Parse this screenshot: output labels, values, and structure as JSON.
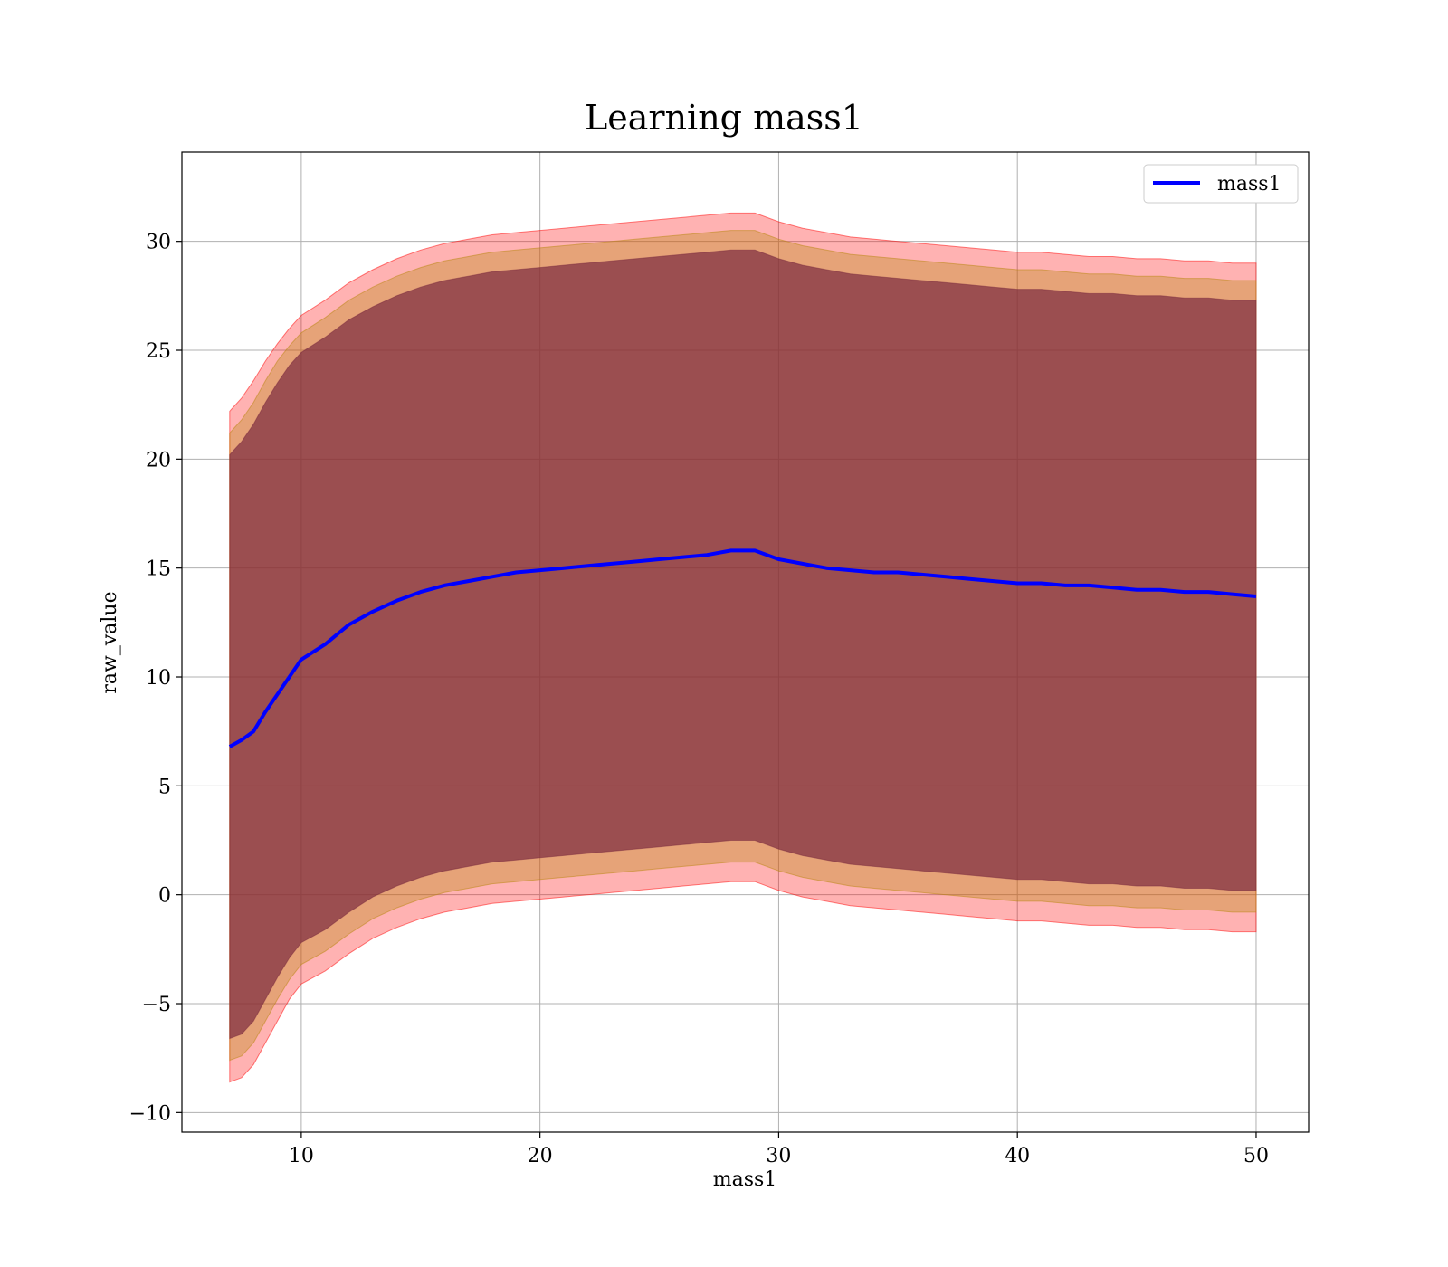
{
  "chart_data": {
    "type": "line",
    "title": "Learning mass1",
    "xlabel": "mass1",
    "ylabel": "raw_value",
    "xlim": [
      5,
      52.2
    ],
    "ylim": [
      -10.9,
      34.1
    ],
    "xticks": [
      10,
      20,
      30,
      40,
      50
    ],
    "yticks": [
      -10,
      -5,
      0,
      5,
      10,
      15,
      20,
      25,
      30
    ],
    "xtick_labels": [
      "10",
      "20",
      "30",
      "40",
      "50"
    ],
    "ytick_labels": [
      "−10",
      "−5",
      "0",
      "5",
      "10",
      "15",
      "20",
      "25",
      "30"
    ],
    "grid": true,
    "legend": {
      "position": "top-right",
      "entries": [
        "mass1"
      ]
    },
    "series": [
      {
        "name": "mass1",
        "color": "#0000ff",
        "x": [
          7,
          7.5,
          8,
          8.5,
          9,
          9.5,
          10,
          11,
          12,
          13,
          14,
          15,
          16,
          17,
          18,
          19,
          20,
          21,
          22,
          23,
          24,
          25,
          26,
          27,
          28,
          29,
          30,
          31,
          32,
          33,
          34,
          35,
          36,
          37,
          38,
          39,
          40,
          41,
          42,
          43,
          44,
          45,
          46,
          47,
          48,
          49,
          50
        ],
        "values": [
          6.8,
          7.1,
          7.5,
          8.4,
          9.2,
          10.0,
          10.8,
          11.5,
          12.4,
          13.0,
          13.5,
          13.9,
          14.2,
          14.4,
          14.6,
          14.8,
          14.9,
          15.0,
          15.1,
          15.2,
          15.3,
          15.4,
          15.5,
          15.6,
          15.8,
          15.8,
          15.4,
          15.2,
          15.0,
          14.9,
          14.8,
          14.8,
          14.7,
          14.6,
          14.5,
          14.4,
          14.3,
          14.3,
          14.2,
          14.2,
          14.1,
          14.0,
          14.0,
          13.9,
          13.9,
          13.8,
          13.7
        ]
      }
    ],
    "bands": [
      {
        "color": "#ff0000",
        "opacity": 0.3,
        "upper": [
          22.2,
          22.8,
          23.6,
          24.5,
          25.3,
          26.0,
          26.6,
          27.3,
          28.1,
          28.7,
          29.2,
          29.6,
          29.9,
          30.1,
          30.3,
          30.4,
          30.5,
          30.6,
          30.7,
          30.8,
          30.9,
          31.0,
          31.1,
          31.2,
          31.3,
          31.3,
          30.9,
          30.6,
          30.4,
          30.2,
          30.1,
          30.0,
          29.9,
          29.8,
          29.7,
          29.6,
          29.5,
          29.5,
          29.4,
          29.3,
          29.3,
          29.2,
          29.2,
          29.1,
          29.1,
          29.0,
          29.0
        ],
        "lower": [
          -8.6,
          -8.4,
          -7.8,
          -6.8,
          -5.8,
          -4.8,
          -4.1,
          -3.5,
          -2.7,
          -2.0,
          -1.5,
          -1.1,
          -0.8,
          -0.6,
          -0.4,
          -0.3,
          -0.2,
          -0.1,
          0.0,
          0.1,
          0.2,
          0.3,
          0.4,
          0.5,
          0.6,
          0.6,
          0.2,
          -0.1,
          -0.3,
          -0.5,
          -0.6,
          -0.7,
          -0.8,
          -0.9,
          -1.0,
          -1.1,
          -1.2,
          -1.2,
          -1.3,
          -1.4,
          -1.4,
          -1.5,
          -1.5,
          -1.6,
          -1.6,
          -1.7,
          -1.7
        ]
      },
      {
        "color": "#b8860b",
        "opacity": 0.35,
        "upper": [
          21.2,
          21.8,
          22.6,
          23.6,
          24.5,
          25.2,
          25.8,
          26.5,
          27.3,
          27.9,
          28.4,
          28.8,
          29.1,
          29.3,
          29.5,
          29.6,
          29.7,
          29.8,
          29.9,
          30.0,
          30.1,
          30.2,
          30.3,
          30.4,
          30.5,
          30.5,
          30.1,
          29.8,
          29.6,
          29.4,
          29.3,
          29.2,
          29.1,
          29.0,
          28.9,
          28.8,
          28.7,
          28.7,
          28.6,
          28.5,
          28.5,
          28.4,
          28.4,
          28.3,
          28.3,
          28.2,
          28.2
        ],
        "lower": [
          -7.6,
          -7.4,
          -6.8,
          -5.8,
          -4.8,
          -3.9,
          -3.2,
          -2.6,
          -1.8,
          -1.1,
          -0.6,
          -0.2,
          0.1,
          0.3,
          0.5,
          0.6,
          0.7,
          0.8,
          0.9,
          1.0,
          1.1,
          1.2,
          1.3,
          1.4,
          1.5,
          1.5,
          1.1,
          0.8,
          0.6,
          0.4,
          0.3,
          0.2,
          0.1,
          0.0,
          -0.1,
          -0.2,
          -0.3,
          -0.3,
          -0.4,
          -0.5,
          -0.5,
          -0.6,
          -0.6,
          -0.7,
          -0.7,
          -0.8,
          -0.8
        ]
      },
      {
        "color": "#7a2a3e",
        "opacity": 0.7,
        "upper": [
          20.2,
          20.8,
          21.6,
          22.6,
          23.5,
          24.3,
          24.9,
          25.6,
          26.4,
          27.0,
          27.5,
          27.9,
          28.2,
          28.4,
          28.6,
          28.7,
          28.8,
          28.9,
          29.0,
          29.1,
          29.2,
          29.3,
          29.4,
          29.5,
          29.6,
          29.6,
          29.2,
          28.9,
          28.7,
          28.5,
          28.4,
          28.3,
          28.2,
          28.1,
          28.0,
          27.9,
          27.8,
          27.8,
          27.7,
          27.6,
          27.6,
          27.5,
          27.5,
          27.4,
          27.4,
          27.3,
          27.3
        ],
        "lower": [
          -6.6,
          -6.4,
          -5.8,
          -4.8,
          -3.8,
          -2.9,
          -2.2,
          -1.6,
          -0.8,
          -0.1,
          0.4,
          0.8,
          1.1,
          1.3,
          1.5,
          1.6,
          1.7,
          1.8,
          1.9,
          2.0,
          2.1,
          2.2,
          2.3,
          2.4,
          2.5,
          2.5,
          2.1,
          1.8,
          1.6,
          1.4,
          1.3,
          1.2,
          1.1,
          1.0,
          0.9,
          0.8,
          0.7,
          0.7,
          0.6,
          0.5,
          0.5,
          0.4,
          0.4,
          0.3,
          0.3,
          0.2,
          0.2
        ]
      }
    ]
  }
}
